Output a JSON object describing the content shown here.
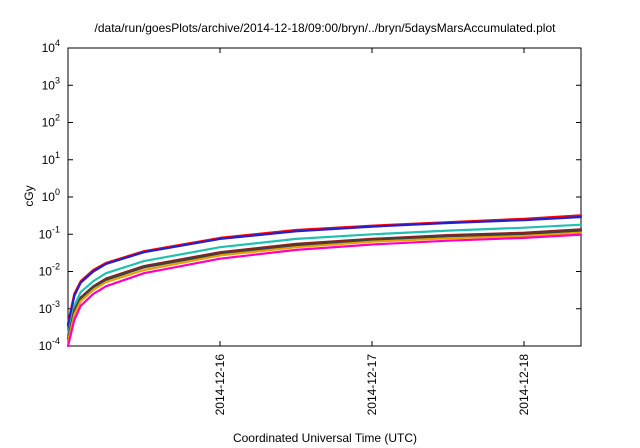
{
  "chart_data": {
    "type": "line",
    "title": "/data/run/goesPlots/archive/2014-12-18/09:00/bryn/../bryn/5daysMarsAccumulated.plot",
    "xlabel": "Coordinated Universal Time (UTC)",
    "ylabel": "cGy",
    "x_type": "date",
    "xlim": [
      "2014-12-15T00:00",
      "2014-12-18T09:00"
    ],
    "ylog": true,
    "ylim": [
      0.0001,
      10000
    ],
    "x_ticks": [
      "2014-12-16",
      "2014-12-17",
      "2014-12-18"
    ],
    "y_ticks": [
      {
        "value": 0.0001,
        "base": "10",
        "exp": "-4"
      },
      {
        "value": 0.001,
        "base": "10",
        "exp": "-3"
      },
      {
        "value": 0.01,
        "base": "10",
        "exp": "-2"
      },
      {
        "value": 0.1,
        "base": "10",
        "exp": "-1"
      },
      {
        "value": 1,
        "base": "10",
        "exp": "0"
      },
      {
        "value": 10,
        "base": "10",
        "exp": "1"
      },
      {
        "value": 100,
        "base": "10",
        "exp": "2"
      },
      {
        "value": 1000,
        "base": "10",
        "exp": "3"
      },
      {
        "value": 10000,
        "base": "10",
        "exp": "4"
      }
    ],
    "grid": false,
    "x": [
      "2014-12-15T00:00",
      "2014-12-15T01:00",
      "2014-12-15T02:00",
      "2014-12-15T04:00",
      "2014-12-15T06:00",
      "2014-12-15T12:00",
      "2014-12-16T00:00",
      "2014-12-16T12:00",
      "2014-12-17T00:00",
      "2014-12-17T12:00",
      "2014-12-18T00:00",
      "2014-12-18T09:00"
    ],
    "series": [
      {
        "color": "#ff0000",
        "values": [
          0.0004,
          0.0025,
          0.0055,
          0.011,
          0.017,
          0.035,
          0.08,
          0.13,
          0.17,
          0.21,
          0.26,
          0.32
        ]
      },
      {
        "color": "#2020d0",
        "values": [
          0.00035,
          0.0022,
          0.005,
          0.01,
          0.016,
          0.033,
          0.075,
          0.12,
          0.16,
          0.2,
          0.24,
          0.29
        ]
      },
      {
        "color": "#20c0b0",
        "values": [
          0.0002,
          0.0012,
          0.0028,
          0.0055,
          0.009,
          0.019,
          0.045,
          0.075,
          0.1,
          0.125,
          0.15,
          0.18
        ]
      },
      {
        "color": "#8b2020",
        "values": [
          0.00016,
          0.0009,
          0.002,
          0.004,
          0.0065,
          0.014,
          0.033,
          0.055,
          0.075,
          0.095,
          0.11,
          0.135
        ]
      },
      {
        "color": "#404040",
        "values": [
          0.00015,
          0.00085,
          0.0019,
          0.0038,
          0.006,
          0.013,
          0.03,
          0.05,
          0.07,
          0.088,
          0.1,
          0.125
        ]
      },
      {
        "color": "#e8a000",
        "values": [
          0.00013,
          0.0007,
          0.0016,
          0.0032,
          0.0052,
          0.011,
          0.027,
          0.045,
          0.063,
          0.078,
          0.09,
          0.11
        ]
      },
      {
        "color": "#ff00c0",
        "values": [
          0.0001,
          0.0005,
          0.0012,
          0.0025,
          0.004,
          0.009,
          0.022,
          0.038,
          0.053,
          0.067,
          0.08,
          0.098
        ]
      }
    ]
  }
}
